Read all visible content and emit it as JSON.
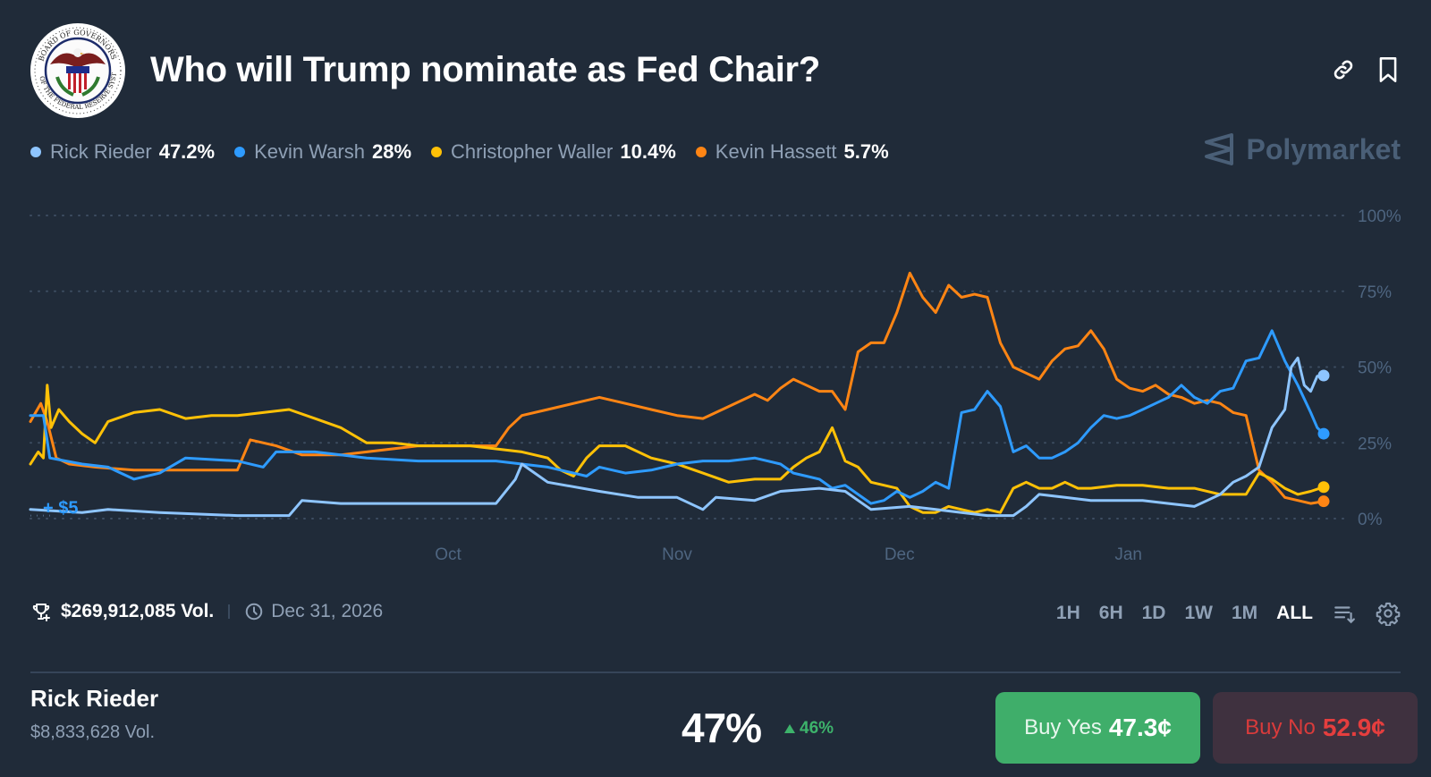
{
  "header": {
    "title": "Who will Trump nominate as Fed Chair?",
    "logo_icon": "federal-reserve-seal-icon",
    "icons": [
      "link-icon",
      "bookmark-icon"
    ]
  },
  "brand": {
    "name": "Polymarket",
    "icon": "polymarket-logo-icon"
  },
  "legend": [
    {
      "name": "Rick Rieder",
      "value": "47.2%",
      "color": "#8ec5ff"
    },
    {
      "name": "Kevin Warsh",
      "value": "28%",
      "color": "#2e9bff"
    },
    {
      "name": "Christopher Waller",
      "value": "10.4%",
      "color": "#ffc107"
    },
    {
      "name": "Kevin Hassett",
      "value": "5.7%",
      "color": "#ff8514"
    }
  ],
  "chart_data": {
    "type": "line",
    "title": "Who will Trump nominate as Fed Chair?",
    "xlabel": "",
    "ylabel": "",
    "x_tick_labels": [
      "Oct",
      "Nov",
      "Dec",
      "Jan"
    ],
    "y_tick_labels": [
      "0%",
      "25%",
      "50%",
      "75%",
      "100%"
    ],
    "ylim": [
      0,
      100
    ],
    "grid": true,
    "annotation": "+ $5",
    "x_range": [
      0,
      100
    ],
    "x_tick_positions": [
      32.3,
      50,
      67.2,
      84.9
    ],
    "series": [
      {
        "name": "Rick Rieder",
        "color": "#8ec5ff",
        "points": [
          [
            0,
            3
          ],
          [
            4,
            2
          ],
          [
            6,
            3
          ],
          [
            10,
            2
          ],
          [
            16,
            1
          ],
          [
            20,
            1
          ],
          [
            21,
            6
          ],
          [
            24,
            5
          ],
          [
            28,
            5
          ],
          [
            34,
            5
          ],
          [
            36,
            5
          ],
          [
            37.5,
            13
          ],
          [
            38,
            18
          ],
          [
            39,
            15
          ],
          [
            40,
            12
          ],
          [
            44,
            9
          ],
          [
            47,
            7
          ],
          [
            50,
            7
          ],
          [
            52,
            3
          ],
          [
            53,
            7
          ],
          [
            56,
            6
          ],
          [
            58,
            9
          ],
          [
            61,
            10
          ],
          [
            63,
            9
          ],
          [
            64,
            6
          ],
          [
            65,
            3
          ],
          [
            68,
            4
          ],
          [
            70,
            3
          ],
          [
            72,
            2
          ],
          [
            74,
            1
          ],
          [
            76,
            1
          ],
          [
            77,
            4
          ],
          [
            78,
            8
          ],
          [
            80,
            7
          ],
          [
            82,
            6
          ],
          [
            84,
            6
          ],
          [
            86,
            6
          ],
          [
            88,
            5
          ],
          [
            90,
            4
          ],
          [
            91,
            6
          ],
          [
            92,
            8
          ],
          [
            93,
            12
          ],
          [
            94,
            14
          ],
          [
            95,
            17
          ],
          [
            96,
            30
          ],
          [
            97,
            36
          ],
          [
            97.5,
            50
          ],
          [
            98,
            53
          ],
          [
            98.5,
            44
          ],
          [
            99,
            42
          ],
          [
            99.5,
            47
          ],
          [
            100,
            47.2
          ]
        ]
      },
      {
        "name": "Kevin Warsh",
        "color": "#2e9bff",
        "points": [
          [
            0,
            34
          ],
          [
            1,
            34
          ],
          [
            1.5,
            20
          ],
          [
            4,
            18
          ],
          [
            6,
            17
          ],
          [
            8,
            13
          ],
          [
            10,
            15
          ],
          [
            12,
            20
          ],
          [
            16,
            19
          ],
          [
            18,
            17
          ],
          [
            19,
            22
          ],
          [
            22,
            22
          ],
          [
            26,
            20
          ],
          [
            30,
            19
          ],
          [
            36,
            19
          ],
          [
            38,
            18
          ],
          [
            40,
            17
          ],
          [
            42,
            15
          ],
          [
            43,
            14
          ],
          [
            44,
            17
          ],
          [
            46,
            15
          ],
          [
            48,
            16
          ],
          [
            50,
            18
          ],
          [
            52,
            19
          ],
          [
            54,
            19
          ],
          [
            56,
            20
          ],
          [
            57,
            19
          ],
          [
            58,
            18
          ],
          [
            59,
            15
          ],
          [
            60,
            14
          ],
          [
            61,
            13
          ],
          [
            62,
            10
          ],
          [
            63,
            11
          ],
          [
            64,
            8
          ],
          [
            65,
            5
          ],
          [
            66,
            6
          ],
          [
            67,
            9
          ],
          [
            68,
            7
          ],
          [
            69,
            9
          ],
          [
            70,
            12
          ],
          [
            71,
            10
          ],
          [
            72,
            35
          ],
          [
            73,
            36
          ],
          [
            74,
            42
          ],
          [
            75,
            37
          ],
          [
            76,
            22
          ],
          [
            77,
            24
          ],
          [
            78,
            20
          ],
          [
            79,
            20
          ],
          [
            80,
            22
          ],
          [
            81,
            25
          ],
          [
            82,
            30
          ],
          [
            83,
            34
          ],
          [
            84,
            33
          ],
          [
            85,
            34
          ],
          [
            86,
            36
          ],
          [
            87,
            38
          ],
          [
            88,
            40
          ],
          [
            89,
            44
          ],
          [
            90,
            40
          ],
          [
            91,
            38
          ],
          [
            92,
            42
          ],
          [
            93,
            43
          ],
          [
            94,
            52
          ],
          [
            95,
            53
          ],
          [
            96,
            62
          ],
          [
            97,
            52
          ],
          [
            98,
            44
          ],
          [
            99,
            35
          ],
          [
            99.5,
            30
          ],
          [
            100,
            28
          ]
        ]
      },
      {
        "name": "Christopher Waller",
        "color": "#ffc107",
        "points": [
          [
            0,
            18
          ],
          [
            0.6,
            22
          ],
          [
            1,
            20
          ],
          [
            1.3,
            44
          ],
          [
            1.6,
            30
          ],
          [
            2.2,
            36
          ],
          [
            3,
            32
          ],
          [
            4,
            28
          ],
          [
            5,
            25
          ],
          [
            6,
            32
          ],
          [
            8,
            35
          ],
          [
            10,
            36
          ],
          [
            12,
            33
          ],
          [
            14,
            34
          ],
          [
            16,
            34
          ],
          [
            20,
            36
          ],
          [
            22,
            33
          ],
          [
            24,
            30
          ],
          [
            26,
            25
          ],
          [
            28,
            25
          ],
          [
            30,
            24
          ],
          [
            32,
            24
          ],
          [
            34,
            24
          ],
          [
            36,
            23
          ],
          [
            38,
            22
          ],
          [
            40,
            20
          ],
          [
            41,
            16
          ],
          [
            42,
            14
          ],
          [
            43,
            20
          ],
          [
            44,
            24
          ],
          [
            46,
            24
          ],
          [
            48,
            20
          ],
          [
            50,
            18
          ],
          [
            52,
            15
          ],
          [
            54,
            12
          ],
          [
            56,
            13
          ],
          [
            58,
            13
          ],
          [
            59,
            17
          ],
          [
            60,
            20
          ],
          [
            61,
            22
          ],
          [
            62,
            30
          ],
          [
            63,
            19
          ],
          [
            64,
            17
          ],
          [
            65,
            12
          ],
          [
            67,
            10
          ],
          [
            68,
            4
          ],
          [
            69,
            2
          ],
          [
            70,
            2
          ],
          [
            71,
            4
          ],
          [
            72,
            3
          ],
          [
            73,
            2
          ],
          [
            74,
            3
          ],
          [
            75,
            2
          ],
          [
            76,
            10
          ],
          [
            77,
            12
          ],
          [
            78,
            10
          ],
          [
            79,
            10
          ],
          [
            80,
            12
          ],
          [
            81,
            10
          ],
          [
            82,
            10
          ],
          [
            84,
            11
          ],
          [
            86,
            11
          ],
          [
            88,
            10
          ],
          [
            90,
            10
          ],
          [
            92,
            8
          ],
          [
            94,
            8
          ],
          [
            95,
            15
          ],
          [
            96,
            13
          ],
          [
            97,
            10
          ],
          [
            98,
            8
          ],
          [
            99,
            9
          ],
          [
            100,
            10.4
          ]
        ]
      },
      {
        "name": "Kevin Hassett",
        "color": "#ff8514",
        "points": [
          [
            0,
            32
          ],
          [
            0.8,
            38
          ],
          [
            1.3,
            32
          ],
          [
            2,
            20
          ],
          [
            3,
            18
          ],
          [
            5,
            17
          ],
          [
            8,
            16
          ],
          [
            10,
            16
          ],
          [
            14,
            16
          ],
          [
            16,
            16
          ],
          [
            17,
            26
          ],
          [
            19,
            24
          ],
          [
            21,
            21
          ],
          [
            24,
            21
          ],
          [
            26,
            22
          ],
          [
            28,
            23
          ],
          [
            30,
            24
          ],
          [
            32,
            24
          ],
          [
            34,
            24
          ],
          [
            36,
            24
          ],
          [
            37,
            30
          ],
          [
            38,
            34
          ],
          [
            40,
            36
          ],
          [
            42,
            38
          ],
          [
            44,
            40
          ],
          [
            46,
            38
          ],
          [
            48,
            36
          ],
          [
            50,
            34
          ],
          [
            52,
            33
          ],
          [
            54,
            37
          ],
          [
            56,
            41
          ],
          [
            57,
            39
          ],
          [
            58,
            43
          ],
          [
            59,
            46
          ],
          [
            60,
            44
          ],
          [
            61,
            42
          ],
          [
            62,
            42
          ],
          [
            63,
            36
          ],
          [
            64,
            55
          ],
          [
            65,
            58
          ],
          [
            66,
            58
          ],
          [
            67,
            68
          ],
          [
            68,
            81
          ],
          [
            69,
            73
          ],
          [
            70,
            68
          ],
          [
            71,
            77
          ],
          [
            72,
            73
          ],
          [
            73,
            74
          ],
          [
            74,
            73
          ],
          [
            75,
            58
          ],
          [
            76,
            50
          ],
          [
            77,
            48
          ],
          [
            78,
            46
          ],
          [
            79,
            52
          ],
          [
            80,
            56
          ],
          [
            81,
            57
          ],
          [
            82,
            62
          ],
          [
            83,
            56
          ],
          [
            84,
            46
          ],
          [
            85,
            43
          ],
          [
            86,
            42
          ],
          [
            87,
            44
          ],
          [
            88,
            41
          ],
          [
            89,
            40
          ],
          [
            90,
            38
          ],
          [
            91,
            39
          ],
          [
            92,
            38
          ],
          [
            93,
            35
          ],
          [
            94,
            34
          ],
          [
            95,
            16
          ],
          [
            96,
            12
          ],
          [
            97,
            7
          ],
          [
            98,
            6
          ],
          [
            99,
            5
          ],
          [
            100,
            5.7
          ]
        ]
      }
    ]
  },
  "footer": {
    "volume": "$269,912,085 Vol.",
    "end_date": "Dec 31, 2026",
    "ranges": [
      "1H",
      "6H",
      "1D",
      "1W",
      "1M",
      "ALL"
    ],
    "active_range": "ALL",
    "tool_icons": [
      "sort-list-icon",
      "gear-icon"
    ]
  },
  "outcome": {
    "name": "Rick Rieder",
    "volume": "$8,833,628 Vol.",
    "chance": "47%",
    "change": "46%",
    "change_direction": "up",
    "buy_yes_label": "Buy Yes",
    "buy_yes_price": "47.3¢",
    "buy_no_label": "Buy No",
    "buy_no_price": "52.9¢"
  }
}
